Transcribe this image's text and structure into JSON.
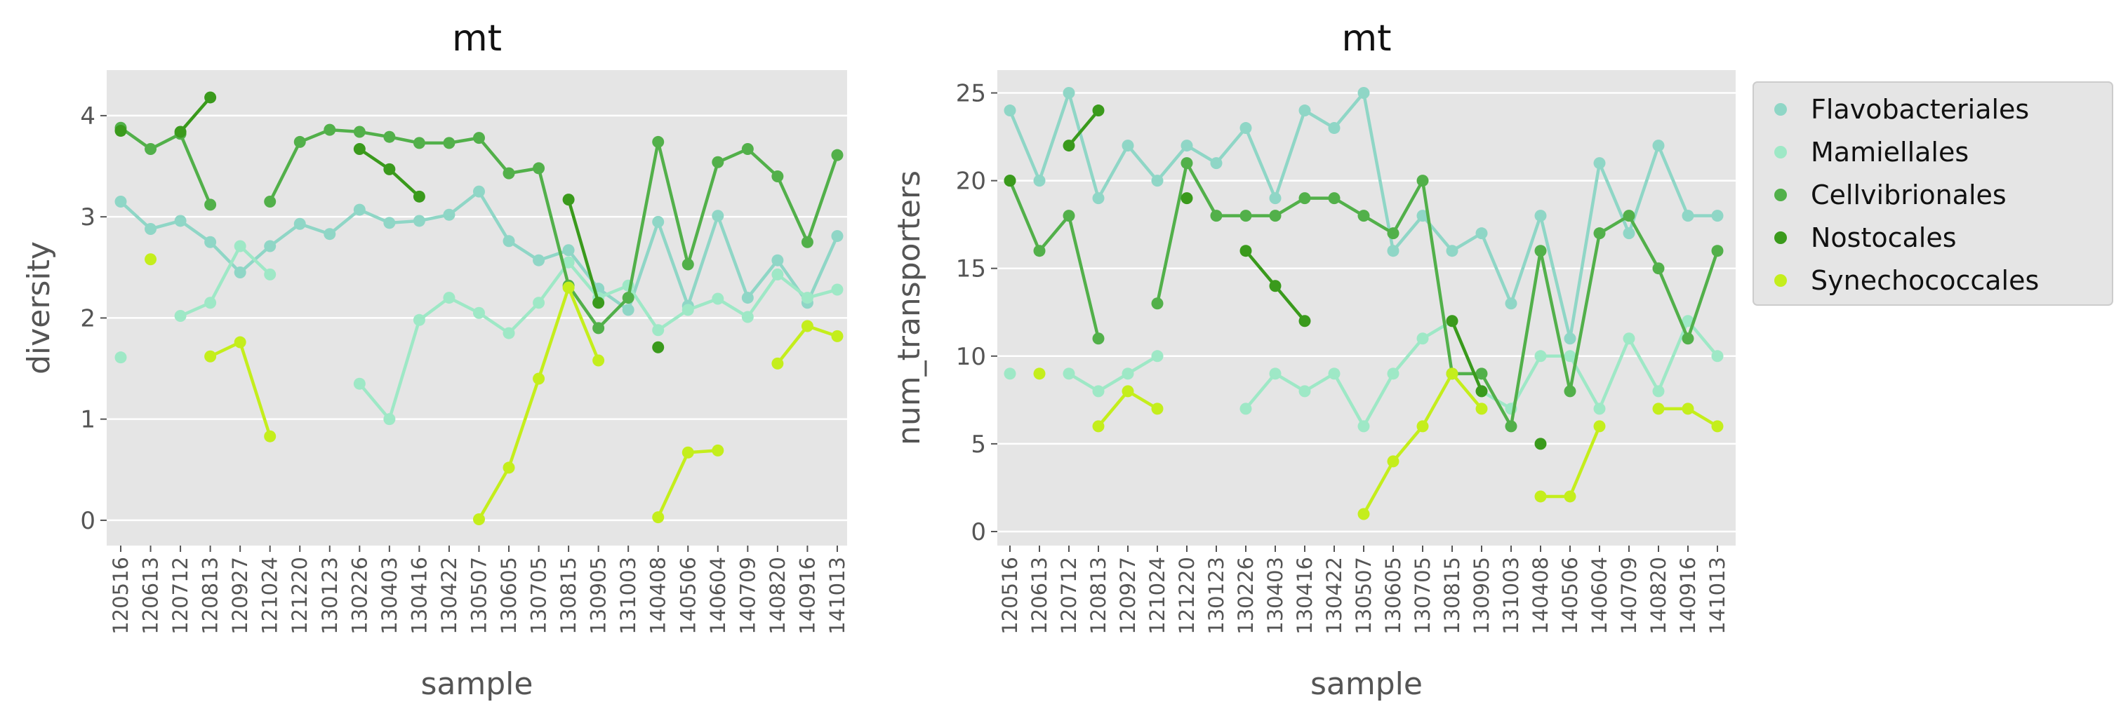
{
  "chart_data": [
    {
      "type": "line",
      "title": "mt",
      "xlabel": "sample",
      "ylabel": "diversity",
      "ylim": [
        -0.25,
        4.45
      ],
      "yticks": [
        0,
        1,
        2,
        3,
        4
      ],
      "grid": true,
      "categories": [
        "120516",
        "120613",
        "120712",
        "120813",
        "120927",
        "121024",
        "121220",
        "130123",
        "130226",
        "130403",
        "130416",
        "130422",
        "130507",
        "130605",
        "130705",
        "130815",
        "130905",
        "131003",
        "140408",
        "140506",
        "140604",
        "140709",
        "140820",
        "140916",
        "141013"
      ],
      "series": [
        {
          "name": "Flavobacteriales",
          "color": "#8fd6c6",
          "values": [
            3.15,
            2.88,
            2.96,
            2.75,
            2.45,
            2.71,
            2.93,
            2.83,
            3.07,
            2.94,
            2.96,
            3.02,
            3.25,
            2.76,
            2.57,
            2.67,
            2.29,
            2.08,
            2.95,
            2.12,
            3.01,
            2.2,
            2.57,
            2.15,
            2.81
          ]
        },
        {
          "name": "Mamiellales",
          "color": "#9ee8c6",
          "values": [
            1.61,
            null,
            2.02,
            2.15,
            2.71,
            2.43,
            null,
            null,
            1.35,
            1.0,
            1.98,
            2.2,
            2.05,
            1.85,
            2.15,
            2.55,
            2.2,
            2.32,
            1.88,
            2.08,
            2.19,
            2.01,
            2.43,
            2.2,
            2.28
          ]
        },
        {
          "name": "Cellvibrionales",
          "color": "#52b04a",
          "values": [
            3.88,
            3.67,
            3.82,
            3.12,
            null,
            3.15,
            3.74,
            3.86,
            3.84,
            3.79,
            3.73,
            3.73,
            3.78,
            3.43,
            3.48,
            2.32,
            1.9,
            2.2,
            3.74,
            2.53,
            3.54,
            3.67,
            3.4,
            2.75,
            3.61
          ]
        },
        {
          "name": "Nostocales",
          "color": "#3a9a1c",
          "values": [
            3.85,
            null,
            3.84,
            4.18,
            null,
            null,
            null,
            null,
            3.67,
            3.47,
            3.2,
            null,
            null,
            null,
            null,
            3.17,
            2.15,
            null,
            1.71,
            null,
            null,
            null,
            null,
            null,
            null
          ]
        },
        {
          "name": "Synechococcales",
          "color": "#c4ee1c",
          "values": [
            null,
            2.58,
            null,
            1.62,
            1.76,
            0.83,
            null,
            null,
            null,
            null,
            null,
            null,
            0.01,
            0.52,
            1.4,
            2.3,
            1.58,
            null,
            0.03,
            0.67,
            0.69,
            null,
            1.55,
            1.92,
            1.82
          ]
        }
      ]
    },
    {
      "type": "line",
      "title": "mt",
      "xlabel": "sample",
      "ylabel": "num_transporters",
      "ylim": [
        -0.8,
        26.3
      ],
      "yticks": [
        0,
        5,
        10,
        15,
        20,
        25
      ],
      "grid": true,
      "legend_position": "outside-top-right",
      "categories": [
        "120516",
        "120613",
        "120712",
        "120813",
        "120927",
        "121024",
        "121220",
        "130123",
        "130226",
        "130403",
        "130416",
        "130422",
        "130507",
        "130605",
        "130705",
        "130815",
        "130905",
        "131003",
        "140408",
        "140506",
        "140604",
        "140709",
        "140820",
        "140916",
        "141013"
      ],
      "series": [
        {
          "name": "Flavobacteriales",
          "color": "#8fd6c6",
          "values": [
            24,
            20,
            25,
            19,
            22,
            20,
            22,
            21,
            23,
            19,
            24,
            23,
            25,
            16,
            18,
            16,
            17,
            13,
            18,
            11,
            21,
            17,
            22,
            18,
            18
          ]
        },
        {
          "name": "Mamiellales",
          "color": "#9ee8c6",
          "values": [
            9,
            null,
            9,
            8,
            9,
            10,
            null,
            null,
            7,
            9,
            8,
            9,
            6,
            9,
            11,
            12,
            8,
            7,
            10,
            10,
            7,
            11,
            8,
            12,
            10
          ]
        },
        {
          "name": "Cellvibrionales",
          "color": "#52b04a",
          "values": [
            20,
            16,
            18,
            11,
            null,
            13,
            21,
            18,
            18,
            18,
            19,
            19,
            18,
            17,
            20,
            9,
            9,
            6,
            16,
            8,
            17,
            18,
            15,
            11,
            16
          ]
        },
        {
          "name": "Nostocales",
          "color": "#3a9a1c",
          "values": [
            20,
            null,
            22,
            24,
            null,
            null,
            19,
            null,
            16,
            14,
            12,
            null,
            null,
            null,
            null,
            12,
            8,
            null,
            5,
            null,
            null,
            null,
            null,
            null,
            null
          ]
        },
        {
          "name": "Synechococcales",
          "color": "#c4ee1c",
          "values": [
            null,
            9,
            null,
            6,
            8,
            7,
            null,
            null,
            null,
            null,
            null,
            null,
            1,
            4,
            6,
            9,
            7,
            null,
            2,
            2,
            6,
            null,
            7,
            7,
            6
          ]
        }
      ]
    }
  ]
}
